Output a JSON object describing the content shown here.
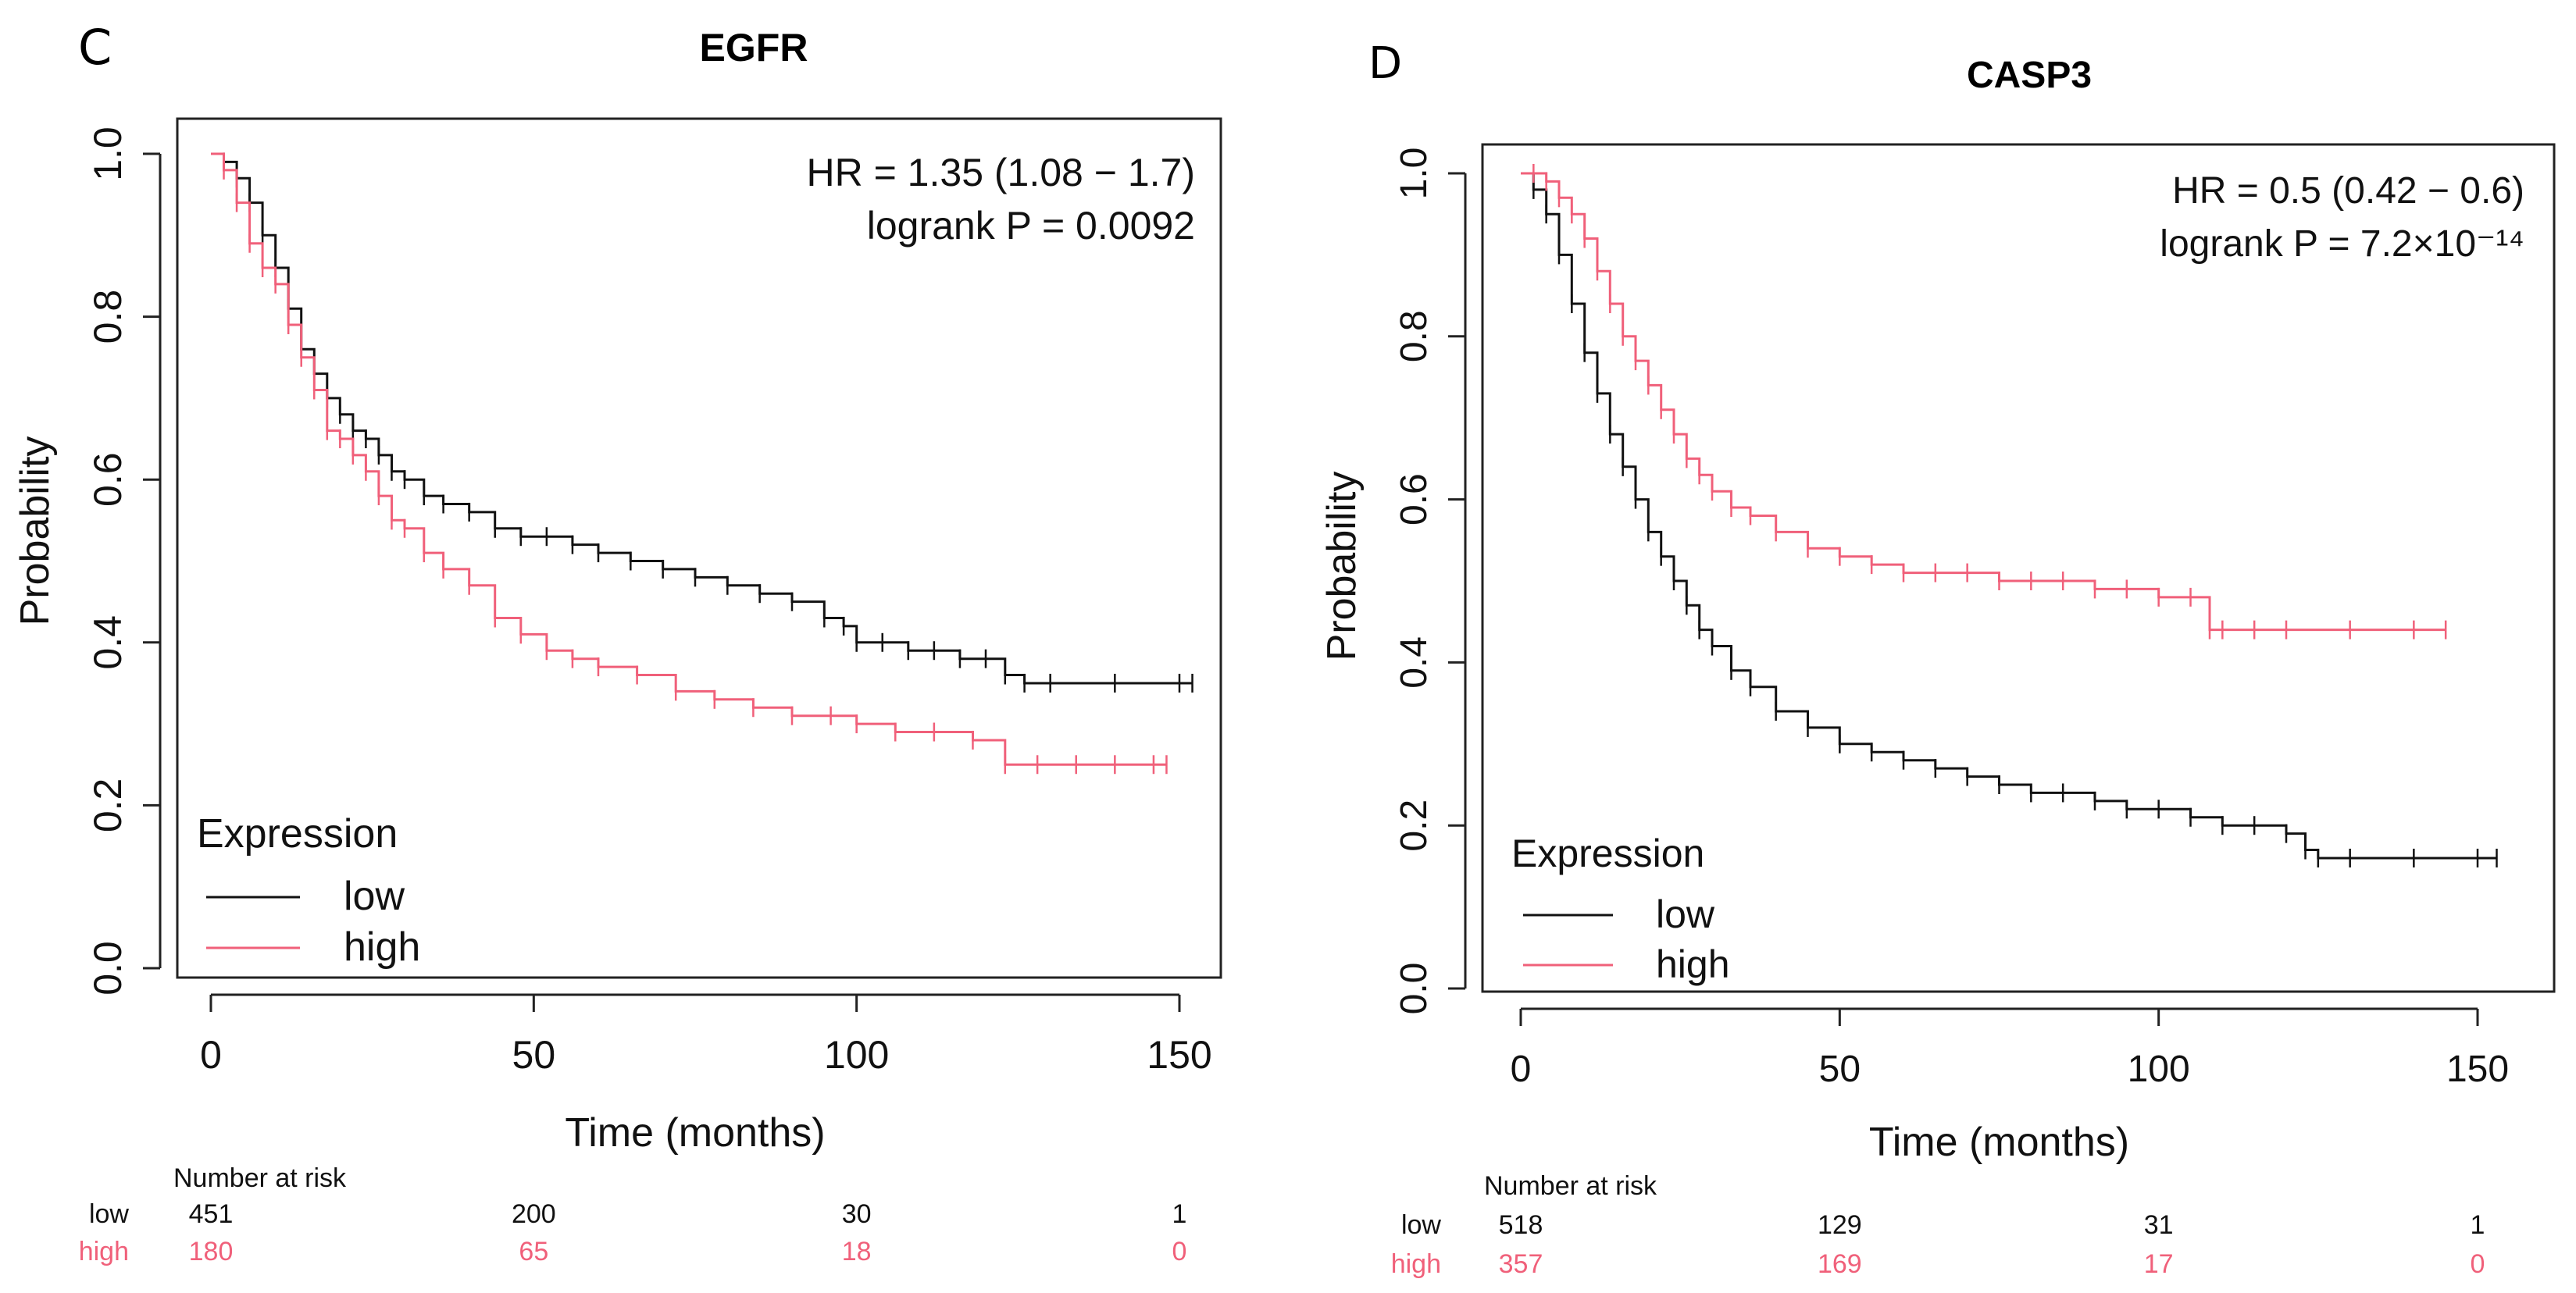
{
  "colors": {
    "low": "#111111",
    "high": "#f0607a",
    "axis": "#222222"
  },
  "chart_data": [
    {
      "type": "line",
      "panel_label": "C",
      "title": "EGFR",
      "xlabel": "Time (months)",
      "ylabel": "Probability",
      "xlim": [
        0,
        155
      ],
      "ylim": [
        0,
        1.03
      ],
      "xticks": [
        0,
        50,
        100,
        150
      ],
      "yticks": [
        0.0,
        0.2,
        0.4,
        0.6,
        0.8,
        1.0
      ],
      "hr_text": "HR = 1.35 (1.08 − 1.7)",
      "p_text": "logrank P = 0.0092",
      "legend_title": "Expression",
      "legend_position": "bottom-left",
      "series": [
        {
          "name": "low",
          "x": [
            0,
            2,
            4,
            6,
            8,
            10,
            12,
            14,
            16,
            18,
            20,
            22,
            24,
            26,
            28,
            30,
            33,
            36,
            40,
            44,
            48,
            52,
            56,
            60,
            65,
            70,
            75,
            80,
            85,
            90,
            95,
            98,
            100,
            104,
            108,
            112,
            116,
            120,
            123,
            126,
            130,
            140,
            150,
            152
          ],
          "y": [
            1.0,
            0.99,
            0.97,
            0.94,
            0.9,
            0.86,
            0.81,
            0.76,
            0.73,
            0.7,
            0.68,
            0.66,
            0.65,
            0.63,
            0.61,
            0.6,
            0.58,
            0.57,
            0.56,
            0.54,
            0.53,
            0.53,
            0.52,
            0.51,
            0.5,
            0.49,
            0.48,
            0.47,
            0.46,
            0.45,
            0.43,
            0.42,
            0.4,
            0.4,
            0.39,
            0.39,
            0.38,
            0.38,
            0.36,
            0.35,
            0.35,
            0.35,
            0.35,
            0.35
          ]
        },
        {
          "name": "high",
          "x": [
            0,
            2,
            4,
            6,
            8,
            10,
            12,
            14,
            16,
            18,
            20,
            22,
            24,
            26,
            28,
            30,
            33,
            36,
            40,
            44,
            48,
            52,
            56,
            60,
            66,
            72,
            78,
            84,
            90,
            96,
            100,
            106,
            112,
            118,
            123,
            128,
            134,
            140,
            146,
            148
          ],
          "y": [
            1.0,
            0.98,
            0.94,
            0.89,
            0.86,
            0.84,
            0.79,
            0.75,
            0.71,
            0.66,
            0.65,
            0.63,
            0.61,
            0.58,
            0.55,
            0.54,
            0.51,
            0.49,
            0.47,
            0.43,
            0.41,
            0.39,
            0.38,
            0.37,
            0.36,
            0.34,
            0.33,
            0.32,
            0.31,
            0.31,
            0.3,
            0.29,
            0.29,
            0.28,
            0.25,
            0.25,
            0.25,
            0.25,
            0.25,
            0.25
          ]
        }
      ],
      "risk_table": {
        "header": "Number at risk",
        "times": [
          0,
          50,
          100,
          150
        ],
        "rows": [
          {
            "label": "low",
            "values": [
              "451",
              "200",
              "30",
              "1"
            ]
          },
          {
            "label": "high",
            "values": [
              "180",
              "65",
              "18",
              "0"
            ]
          }
        ]
      }
    },
    {
      "type": "line",
      "panel_label": "D",
      "title": "CASP3",
      "xlabel": "Time (months)",
      "ylabel": "Probability",
      "xlim": [
        0,
        155
      ],
      "ylim": [
        0,
        1.03
      ],
      "xticks": [
        0,
        50,
        100,
        150
      ],
      "yticks": [
        0.0,
        0.2,
        0.4,
        0.6,
        0.8,
        1.0
      ],
      "hr_text": "HR = 0.5 (0.42 − 0.6)",
      "p_text": "logrank P = 7.2×10⁻¹⁴",
      "legend_title": "Expression",
      "legend_position": "bottom-left",
      "series": [
        {
          "name": "low",
          "x": [
            0,
            2,
            4,
            6,
            8,
            10,
            12,
            14,
            16,
            18,
            20,
            22,
            24,
            26,
            28,
            30,
            33,
            36,
            40,
            45,
            50,
            55,
            60,
            65,
            70,
            75,
            80,
            85,
            90,
            95,
            100,
            105,
            110,
            115,
            120,
            123,
            125,
            130,
            140,
            150,
            153
          ],
          "y": [
            1.0,
            0.98,
            0.95,
            0.9,
            0.84,
            0.78,
            0.73,
            0.68,
            0.64,
            0.6,
            0.56,
            0.53,
            0.5,
            0.47,
            0.44,
            0.42,
            0.39,
            0.37,
            0.34,
            0.32,
            0.3,
            0.29,
            0.28,
            0.27,
            0.26,
            0.25,
            0.24,
            0.24,
            0.23,
            0.22,
            0.22,
            0.21,
            0.2,
            0.2,
            0.19,
            0.17,
            0.16,
            0.16,
            0.16,
            0.16,
            0.16
          ]
        },
        {
          "name": "high",
          "x": [
            0,
            2,
            4,
            6,
            8,
            10,
            12,
            14,
            16,
            18,
            20,
            22,
            24,
            26,
            28,
            30,
            33,
            36,
            40,
            45,
            50,
            55,
            60,
            65,
            70,
            75,
            80,
            85,
            90,
            95,
            100,
            105,
            108,
            110,
            115,
            120,
            130,
            140,
            145
          ],
          "y": [
            1.0,
            1.0,
            0.99,
            0.97,
            0.95,
            0.92,
            0.88,
            0.84,
            0.8,
            0.77,
            0.74,
            0.71,
            0.68,
            0.65,
            0.63,
            0.61,
            0.59,
            0.58,
            0.56,
            0.54,
            0.53,
            0.52,
            0.51,
            0.51,
            0.51,
            0.5,
            0.5,
            0.5,
            0.49,
            0.49,
            0.48,
            0.48,
            0.44,
            0.44,
            0.44,
            0.44,
            0.44,
            0.44,
            0.44
          ]
        }
      ],
      "risk_table": {
        "header": "Number at risk",
        "times": [
          0,
          50,
          100,
          150
        ],
        "rows": [
          {
            "label": "low",
            "values": [
              "518",
              "129",
              "31",
              "1"
            ]
          },
          {
            "label": "high",
            "values": [
              "357",
              "169",
              "17",
              "0"
            ]
          }
        ]
      }
    }
  ]
}
